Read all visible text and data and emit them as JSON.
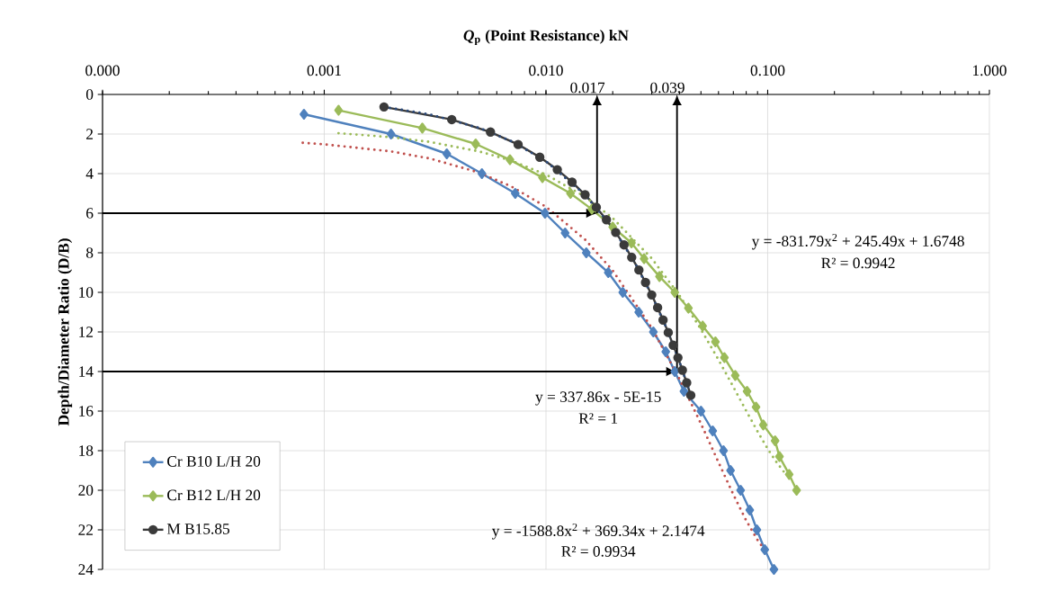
{
  "chart_data": {
    "type": "line",
    "xlabel": "*Q*$_{p}$ (Point Resistance) kN",
    "ylabel": "Depth/Diameter Ratio (D/B)",
    "log": "x",
    "grid": true,
    "legend": "bottom left",
    "xlim": [
      0.0001,
      1
    ],
    "ylim": [
      24,
      0
    ],
    "xticks": [
      {
        "value": 0.0001,
        "label": "0.000"
      },
      {
        "value": 0.001,
        "label": "0.001"
      },
      {
        "value": 0.01,
        "label": "0.010"
      },
      {
        "value": 0.1,
        "label": "0.100"
      },
      {
        "value": 1,
        "label": "1.000"
      }
    ],
    "yticks": [
      0,
      2,
      4,
      6,
      8,
      10,
      12,
      14,
      16,
      18,
      20,
      22,
      24
    ],
    "series": [
      {
        "name": "Cr B10 L/H 20",
        "color": "#4f81bd",
        "marker": "diamond",
        "line_style": "solid",
        "x": [
          0.00081,
          0.002,
          0.00357,
          0.00514,
          0.00727,
          0.0099,
          0.0122,
          0.0152,
          0.0191,
          0.0222,
          0.0262,
          0.0305,
          0.0347,
          0.0381,
          0.0419,
          0.05,
          0.0565,
          0.0632,
          0.068,
          0.0755,
          0.083,
          0.0894,
          0.097,
          0.1067
        ],
        "values": [
          1,
          2,
          3,
          4,
          5,
          6,
          7,
          8,
          9,
          10,
          11,
          12,
          13,
          14,
          15,
          16,
          17,
          18,
          19,
          20,
          21,
          22,
          23,
          24
        ]
      },
      {
        "name": "Cr B12 L/H 20",
        "color": "#9bbb59",
        "marker": "diamond",
        "line_style": "solid",
        "x": [
          0.00116,
          0.00277,
          0.00482,
          0.00688,
          0.00964,
          0.0129,
          0.0161,
          0.02,
          0.0243,
          0.0277,
          0.0325,
          0.0381,
          0.0439,
          0.0509,
          0.0581,
          0.0638,
          0.0714,
          0.0807,
          0.0886,
          0.0955,
          0.108,
          0.113,
          0.125,
          0.135
        ],
        "values": [
          0.8,
          1.7,
          2.5,
          3.3,
          4.2,
          5.0,
          5.8,
          6.7,
          7.5,
          8.3,
          9.2,
          10,
          10.8,
          11.7,
          12.5,
          13.3,
          14.2,
          15,
          15.8,
          16.7,
          17.5,
          18.3,
          19.2,
          20
        ]
      },
      {
        "name": "M B15.85",
        "color": "#3b3b3b",
        "marker": "circle",
        "line_style": "solid",
        "x": [
          0.00186,
          0.00376,
          0.00562,
          0.00749,
          0.00938,
          0.01125,
          0.01311,
          0.01501,
          0.01687,
          0.01874,
          0.02063,
          0.02249,
          0.02436,
          0.02625,
          0.02812,
          0.02998,
          0.03188,
          0.03374,
          0.03561,
          0.0375,
          0.03937,
          0.04123,
          0.04312,
          0.04499
        ],
        "values": [
          0.63,
          1.27,
          1.9,
          2.53,
          3.17,
          3.8,
          4.43,
          5.07,
          5.7,
          6.33,
          6.97,
          7.6,
          8.23,
          8.87,
          9.5,
          10.13,
          10.77,
          11.4,
          12.03,
          12.67,
          13.3,
          13.93,
          14.57,
          15.2
        ]
      },
      {
        "type": "line",
        "color": "#c0504d",
        "marker": "none",
        "line_style": "dotted",
        "x": [
          0.0008,
          0.001,
          0.002,
          0.003,
          0.005,
          0.007,
          0.01,
          0.015,
          0.02,
          0.03,
          0.04,
          0.05,
          0.06,
          0.07,
          0.08,
          0.09,
          0.097
        ],
        "values": [
          2.44,
          2.52,
          2.88,
          3.24,
          3.95,
          4.66,
          5.68,
          7.33,
          8.9,
          11.8,
          14.38,
          16.64,
          18.59,
          20.22,
          21.53,
          22.52,
          23.02
        ]
      },
      {
        "type": "line",
        "color": "#9bbb59",
        "marker": "none",
        "line_style": "dotted",
        "x": [
          0.00116,
          0.002,
          0.003,
          0.005,
          0.007,
          0.01,
          0.015,
          0.02,
          0.03,
          0.04,
          0.05,
          0.06,
          0.07,
          0.08,
          0.09,
          0.1,
          0.11,
          0.12
        ],
        "values": [
          1.96,
          2.16,
          2.4,
          2.88,
          3.35,
          4.05,
          5.17,
          6.25,
          8.29,
          10.16,
          11.87,
          13.41,
          14.78,
          15.99,
          17.03,
          17.91,
          18.61,
          19.16
        ]
      },
      {
        "type": "line",
        "color": "#2c4a7a",
        "marker": "none",
        "line_style": "dotted",
        "x": [
          0.00186,
          0.003,
          0.005,
          0.007,
          0.01,
          0.015,
          0.02,
          0.025,
          0.03,
          0.035,
          0.04,
          0.045
        ],
        "values": [
          0.63,
          1.01,
          1.69,
          2.37,
          3.38,
          5.07,
          6.76,
          8.45,
          10.14,
          11.83,
          13.51,
          15.2
        ]
      }
    ],
    "annotations": [
      {
        "text": "0.017",
        "x": 0.017,
        "y": 6
      },
      {
        "text": "0.039",
        "x": 0.039,
        "y": 14
      },
      "y = -831.79x$^{2}$ + 245.49x + 1.6748",
      "R² = 0.9942",
      "y = 337.86x - 5E-15",
      "R² = 1",
      "y = -1588.8x$^{2}$ + 369.34x + 2.1474",
      "R² = 0.9934"
    ]
  }
}
